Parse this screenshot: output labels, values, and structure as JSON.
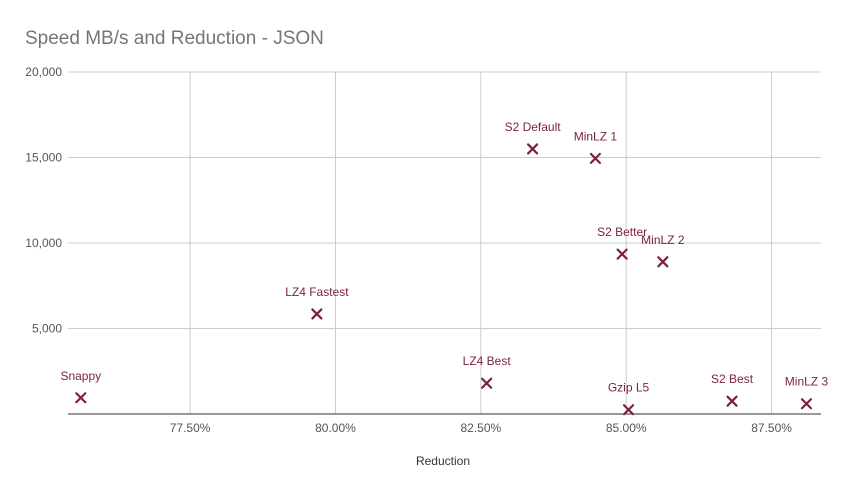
{
  "chart_data": {
    "type": "scatter",
    "title": "Speed MB/s and Reduction - JSON",
    "xlabel": "Reduction",
    "ylabel": "",
    "xlim": [
      75.4,
      88.35
    ],
    "ylim": [
      0,
      20000
    ],
    "x_ticks": [
      77.5,
      80.0,
      82.5,
      85.0,
      87.5
    ],
    "x_tick_labels": [
      "77.50%",
      "80.00%",
      "82.50%",
      "85.00%",
      "87.50%"
    ],
    "y_ticks": [
      5000,
      10000,
      15000,
      20000
    ],
    "y_tick_labels": [
      "5,000",
      "10,000",
      "15,000",
      "20,000"
    ],
    "grid": true,
    "marker": "x",
    "color": "#7b1f45",
    "points": [
      {
        "label": "Snappy",
        "x": 75.62,
        "y": 950
      },
      {
        "label": "LZ4 Fastest",
        "x": 79.68,
        "y": 5850
      },
      {
        "label": "LZ4 Best",
        "x": 82.6,
        "y": 1800
      },
      {
        "label": "S2 Default",
        "x": 83.39,
        "y": 15500
      },
      {
        "label": "MinLZ 1",
        "x": 84.47,
        "y": 14950
      },
      {
        "label": "S2 Better",
        "x": 84.93,
        "y": 9350
      },
      {
        "label": "MinLZ 2",
        "x": 85.63,
        "y": 8900
      },
      {
        "label": "Gzip L5",
        "x": 85.04,
        "y": 250
      },
      {
        "label": "S2 Best",
        "x": 86.82,
        "y": 750
      },
      {
        "label": "MinLZ 3",
        "x": 88.1,
        "y": 600
      }
    ]
  }
}
